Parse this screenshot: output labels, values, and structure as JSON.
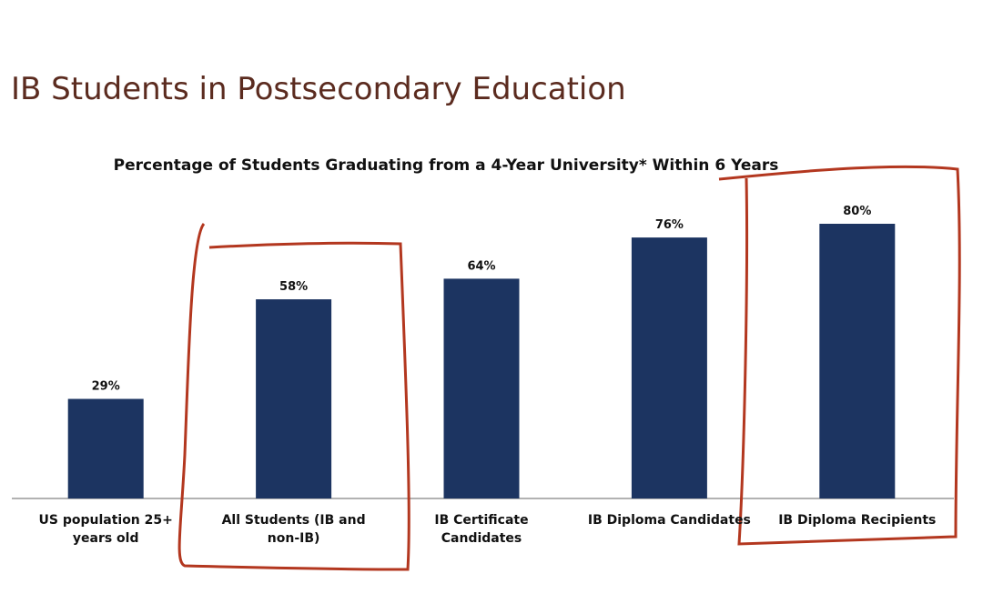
{
  "header": {
    "title": "IB Students in Postsecondary Education"
  },
  "chart_data": {
    "type": "bar",
    "title": "Percentage of Students Graduating from a 4-Year University* Within 6 Years",
    "categories": [
      "US population 25+ years old",
      "All Students (IB and non-IB)",
      "IB Certificate Candidates",
      "IB Diploma Candidates",
      "IB Diploma Recipients"
    ],
    "values": [
      29,
      58,
      64,
      76,
      80
    ],
    "value_labels": [
      "29%",
      "58%",
      "64%",
      "76%",
      "80%"
    ],
    "color": "#1c3461"
  }
}
